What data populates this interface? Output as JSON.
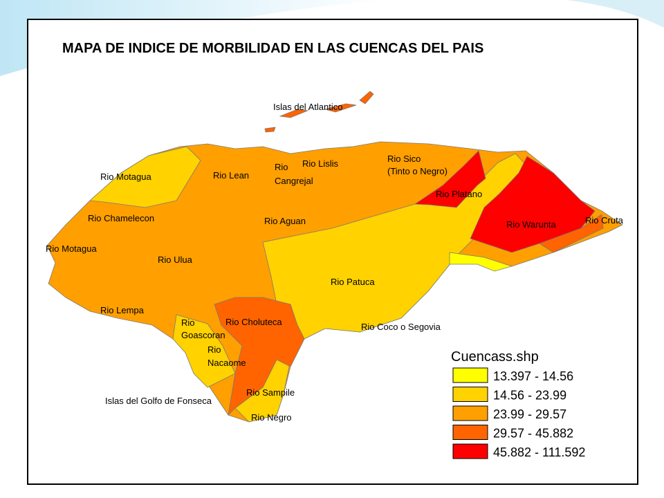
{
  "title": "MAPA DE INDICE DE MORBILIDAD EN LAS CUENCAS DEL PAIS",
  "labels": [
    [
      "Islas del Atlantico"
    ],
    [
      "Rio Motagua"
    ],
    [
      "Rio Lean"
    ],
    [
      "Rio",
      "Cangrejal"
    ],
    [
      "Rio Lislis"
    ],
    [
      "Rio Sico",
      "(Tinto o Negro)"
    ],
    [
      "Rio Platano"
    ],
    [
      "Rio Chamelecon"
    ],
    [
      "Rio Aguan"
    ],
    [
      "Rio Warunta"
    ],
    [
      "Rio Cruta"
    ],
    [
      "Rio Motagua"
    ],
    [
      "Rio Ulua"
    ],
    [
      "Rio Patuca"
    ],
    [
      "Rio Lempa"
    ],
    [
      "Rio",
      "Goascoran"
    ],
    [
      "Rio Choluteca"
    ],
    [
      "Rio Coco o Segovia"
    ],
    [
      "Rio",
      "Nacaome"
    ],
    [
      "Islas del Golfo de Fonseca"
    ],
    [
      "Rio Sampile"
    ],
    [
      "Rio Negro"
    ]
  ],
  "legend": {
    "title": "Cuencass.shp",
    "items": [
      {
        "label": "13.397 - 14.56",
        "color": "#ffff00"
      },
      {
        "label": "14.56 - 23.99",
        "color": "#ffd200"
      },
      {
        "label": "23.99 - 29.57",
        "color": "#ff9f00"
      },
      {
        "label": "29.57 - 45.882",
        "color": "#ff6400"
      },
      {
        "label": "45.882 - 111.592",
        "color": "#ff0000"
      }
    ]
  }
}
